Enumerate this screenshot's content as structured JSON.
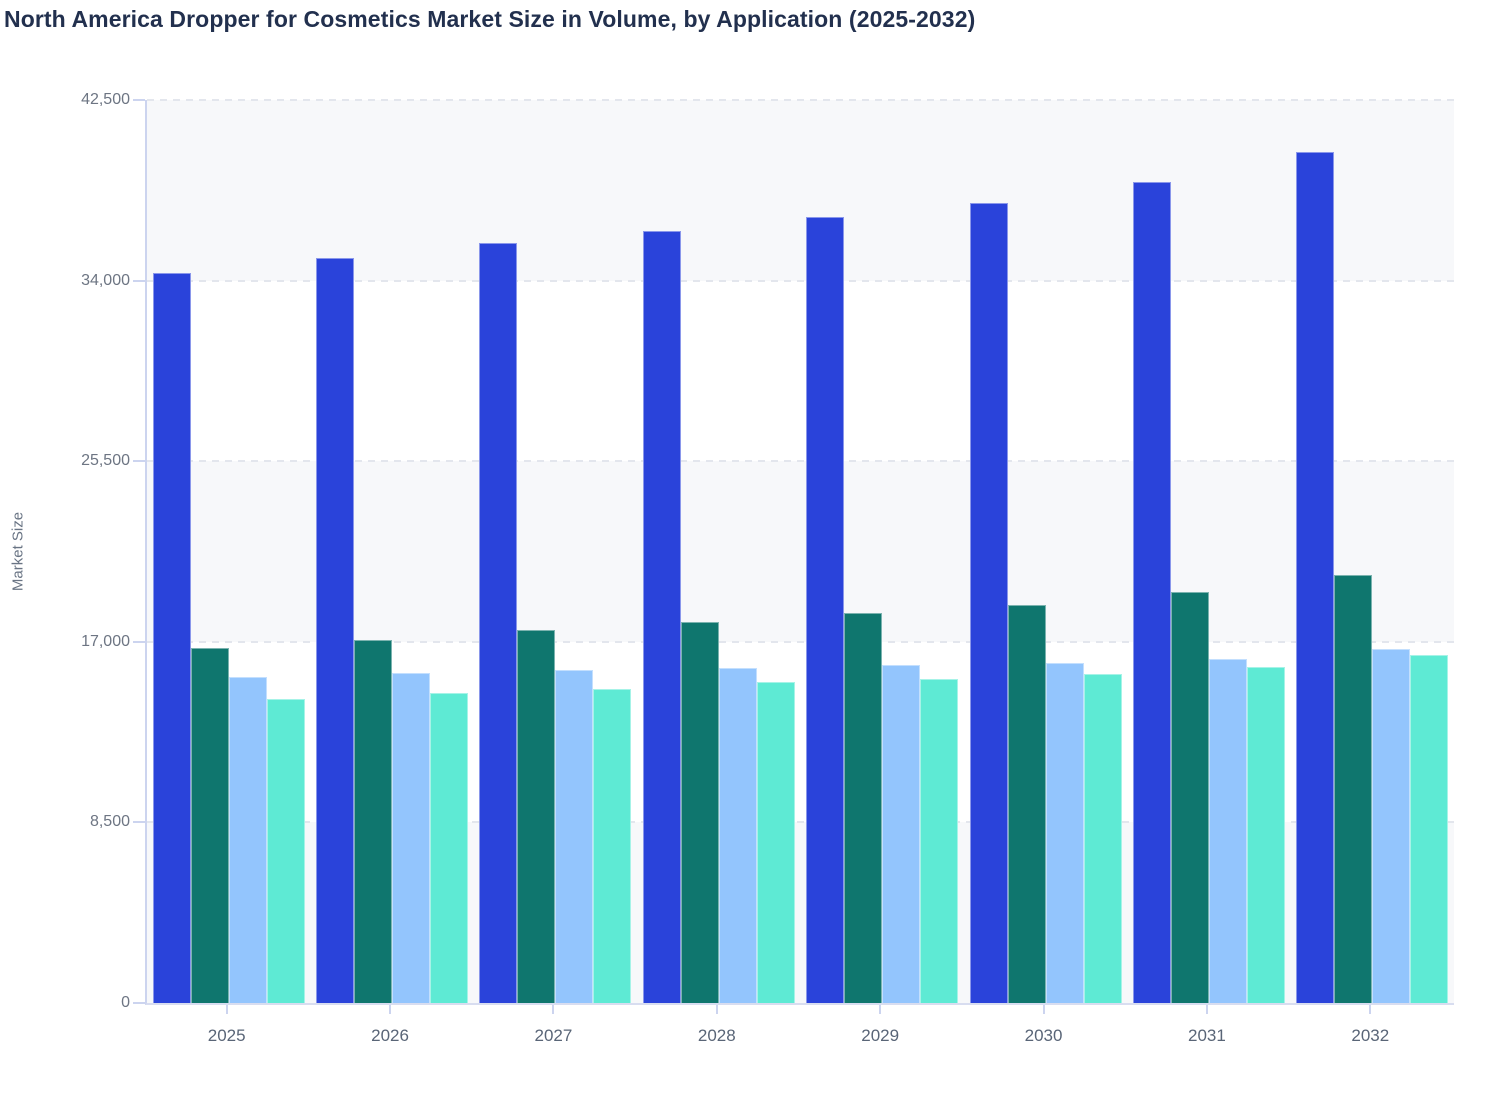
{
  "title": "North America Dropper for Cosmetics Market Size in Volume, by Application (2025-2032)",
  "chart_data": {
    "type": "bar",
    "title": "North America Dropper for Cosmetics Market Size in Volume, by Application (2025-2032)",
    "xlabel": "",
    "ylabel": "Market Size",
    "categories": [
      "2025",
      "2026",
      "2027",
      "2028",
      "2029",
      "2030",
      "2031",
      "2032"
    ],
    "series": [
      {
        "name": "series-1-blue",
        "color": "#2a43da",
        "values": [
          34350,
          35050,
          35750,
          36350,
          37000,
          37650,
          38650,
          40050
        ]
      },
      {
        "name": "series-2-teal",
        "color": "#0f766e",
        "values": [
          16700,
          17100,
          17550,
          17950,
          18350,
          18750,
          19350,
          20150
        ]
      },
      {
        "name": "series-3-light-blue",
        "color": "#93c5fd",
        "values": [
          15350,
          15550,
          15650,
          15750,
          15900,
          16000,
          16200,
          16650
        ]
      },
      {
        "name": "series-4-mint",
        "color": "#5eead4",
        "values": [
          14300,
          14600,
          14800,
          15100,
          15250,
          15500,
          15800,
          16400
        ]
      }
    ],
    "ylim": [
      0,
      42500
    ],
    "yticks": [
      0,
      8500,
      17000,
      25500,
      34000,
      42500
    ],
    "ytick_labels": [
      "0",
      "8,500",
      "17,000",
      "25,500",
      "34,000",
      "42,500"
    ],
    "grid": "horizontal dashed",
    "legend": "none",
    "plot_band_colors": [
      "#f7f8fa",
      "#ffffff"
    ]
  },
  "colors": {
    "title_text": "#22304e",
    "axis_spine": "#ccd4ef",
    "gridline": "#e3e6ed",
    "ytick_text": "#6d7583",
    "xtick_text": "#596577",
    "band_gray": "#f7f8fa",
    "band_white": "#ffffff"
  }
}
